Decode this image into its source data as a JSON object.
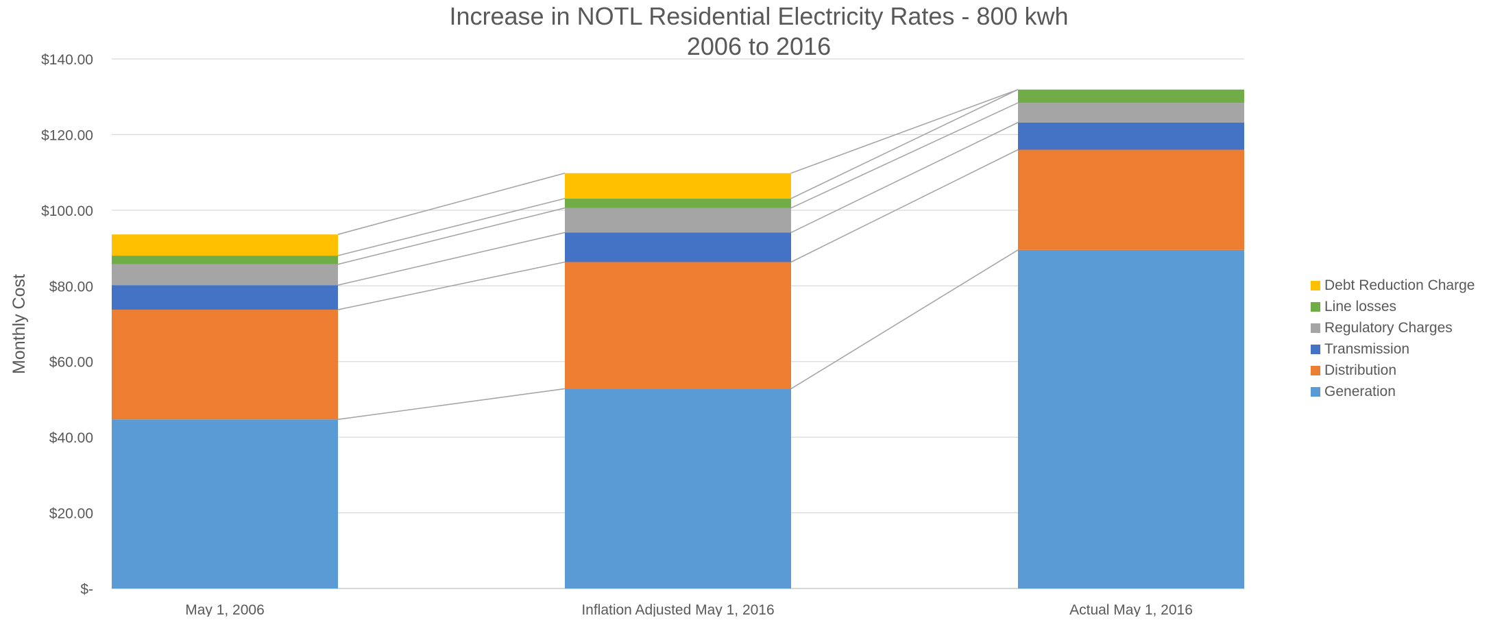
{
  "chart_data": {
    "type": "bar",
    "stacked": true,
    "title": "Increase in NOTL Residential Electricity Rates - 800 kwh",
    "subtitle": "2006 to 2016",
    "xlabel": "",
    "ylabel": "Monthly Cost",
    "ylim": [
      0,
      140
    ],
    "yticks": [
      {
        "value": 0,
        "label": "$-"
      },
      {
        "value": 20,
        "label": "$20.00"
      },
      {
        "value": 40,
        "label": "$40.00"
      },
      {
        "value": 60,
        "label": "$60.00"
      },
      {
        "value": 80,
        "label": "$80.00"
      },
      {
        "value": 100,
        "label": "$100.00"
      },
      {
        "value": 120,
        "label": "$120.00"
      },
      {
        "value": 140,
        "label": "$140.00"
      }
    ],
    "grid": true,
    "series_lines": true,
    "legend_position": "right",
    "categories": [
      "May 1, 2006",
      "Inflation Adjusted May 1, 2016",
      "Actual May 1, 2016"
    ],
    "series": [
      {
        "name": "Generation",
        "color": "#5B9BD5",
        "values": [
          44.7,
          52.8,
          89.5
        ]
      },
      {
        "name": "Distribution",
        "color": "#ED7D31",
        "values": [
          29.0,
          33.5,
          26.5
        ]
      },
      {
        "name": "Transmission",
        "color": "#4472C4",
        "values": [
          6.5,
          7.8,
          7.2
        ]
      },
      {
        "name": "Regulatory Charges",
        "color": "#A5A5A5",
        "values": [
          5.5,
          6.5,
          5.2
        ]
      },
      {
        "name": "Line losses",
        "color": "#70AD47",
        "values": [
          2.3,
          2.5,
          3.5
        ]
      },
      {
        "name": "Debt Reduction Charge",
        "color": "#FFC000",
        "values": [
          5.6,
          6.7,
          0
        ]
      }
    ]
  }
}
